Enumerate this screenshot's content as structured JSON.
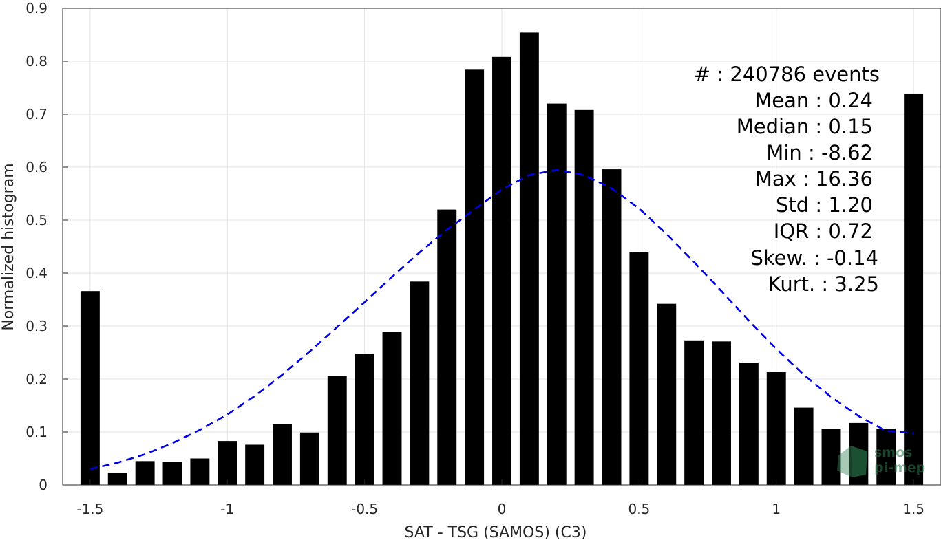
{
  "chart_data": {
    "type": "bar",
    "xlabel": "SAT - TSG (SAMOS) (C3)",
    "ylabel": "Normalized histogram",
    "xlim": [
      -1.6,
      1.6
    ],
    "ylim": [
      0,
      0.9
    ],
    "grid": true,
    "x_ticks": [
      -1.5,
      -1,
      -0.5,
      0,
      0.5,
      1,
      1.5
    ],
    "x_tick_labels": [
      "-1.5",
      "-1",
      "-0.5",
      "0",
      "0.5",
      "1",
      "1.5"
    ],
    "y_ticks": [
      0,
      0.1,
      0.2,
      0.3,
      0.4,
      0.5,
      0.6,
      0.7,
      0.8,
      0.9
    ],
    "y_tick_labels": [
      "0",
      "0.1",
      "0.2",
      "0.3",
      "0.4",
      "0.5",
      "0.6",
      "0.7",
      "0.8",
      "0.9"
    ],
    "bar_color": "#000000",
    "bar_width": 0.07,
    "bars": {
      "x": [
        -1.5,
        -1.4,
        -1.3,
        -1.2,
        -1.1,
        -1.0,
        -0.9,
        -0.8,
        -0.7,
        -0.6,
        -0.5,
        -0.4,
        -0.3,
        -0.2,
        -0.1,
        0.0,
        0.1,
        0.2,
        0.3,
        0.4,
        0.5,
        0.6,
        0.7,
        0.8,
        0.9,
        1.0,
        1.1,
        1.2,
        1.3,
        1.4,
        1.5
      ],
      "values": [
        0.366,
        0.023,
        0.045,
        0.044,
        0.05,
        0.083,
        0.076,
        0.115,
        0.099,
        0.206,
        0.248,
        0.289,
        0.384,
        0.52,
        0.784,
        0.808,
        0.854,
        0.72,
        0.708,
        0.596,
        0.44,
        0.342,
        0.273,
        0.271,
        0.231,
        0.213,
        0.146,
        0.106,
        0.117,
        0.106,
        0.739
      ]
    },
    "fit_curve": {
      "style": "dashed",
      "color": "#0000e6",
      "x": [
        -1.5,
        -1.4,
        -1.3,
        -1.2,
        -1.1,
        -1.0,
        -0.9,
        -0.8,
        -0.7,
        -0.6,
        -0.5,
        -0.4,
        -0.3,
        -0.2,
        -0.1,
        0.0,
        0.1,
        0.2,
        0.3,
        0.4,
        0.5,
        0.6,
        0.7,
        0.8,
        0.9,
        1.0,
        1.1,
        1.2,
        1.3,
        1.4,
        1.5
      ],
      "y": [
        0.03,
        0.042,
        0.058,
        0.079,
        0.104,
        0.133,
        0.168,
        0.208,
        0.252,
        0.298,
        0.345,
        0.393,
        0.439,
        0.482,
        0.52,
        0.558,
        0.585,
        0.595,
        0.585,
        0.56,
        0.522,
        0.474,
        0.421,
        0.366,
        0.31,
        0.257,
        0.208,
        0.166,
        0.13,
        0.102,
        0.098
      ]
    },
    "annotations": [
      "#  : 240786 events",
      "Mean : 0.24",
      "Median : 0.15",
      "Min : -8.62",
      "Max : 16.36",
      "Std : 1.20",
      "IQR : 0.72",
      "Skew. : -0.14",
      "Kurt. : 3.25"
    ],
    "watermark": [
      "smos",
      "pi-mep"
    ]
  }
}
